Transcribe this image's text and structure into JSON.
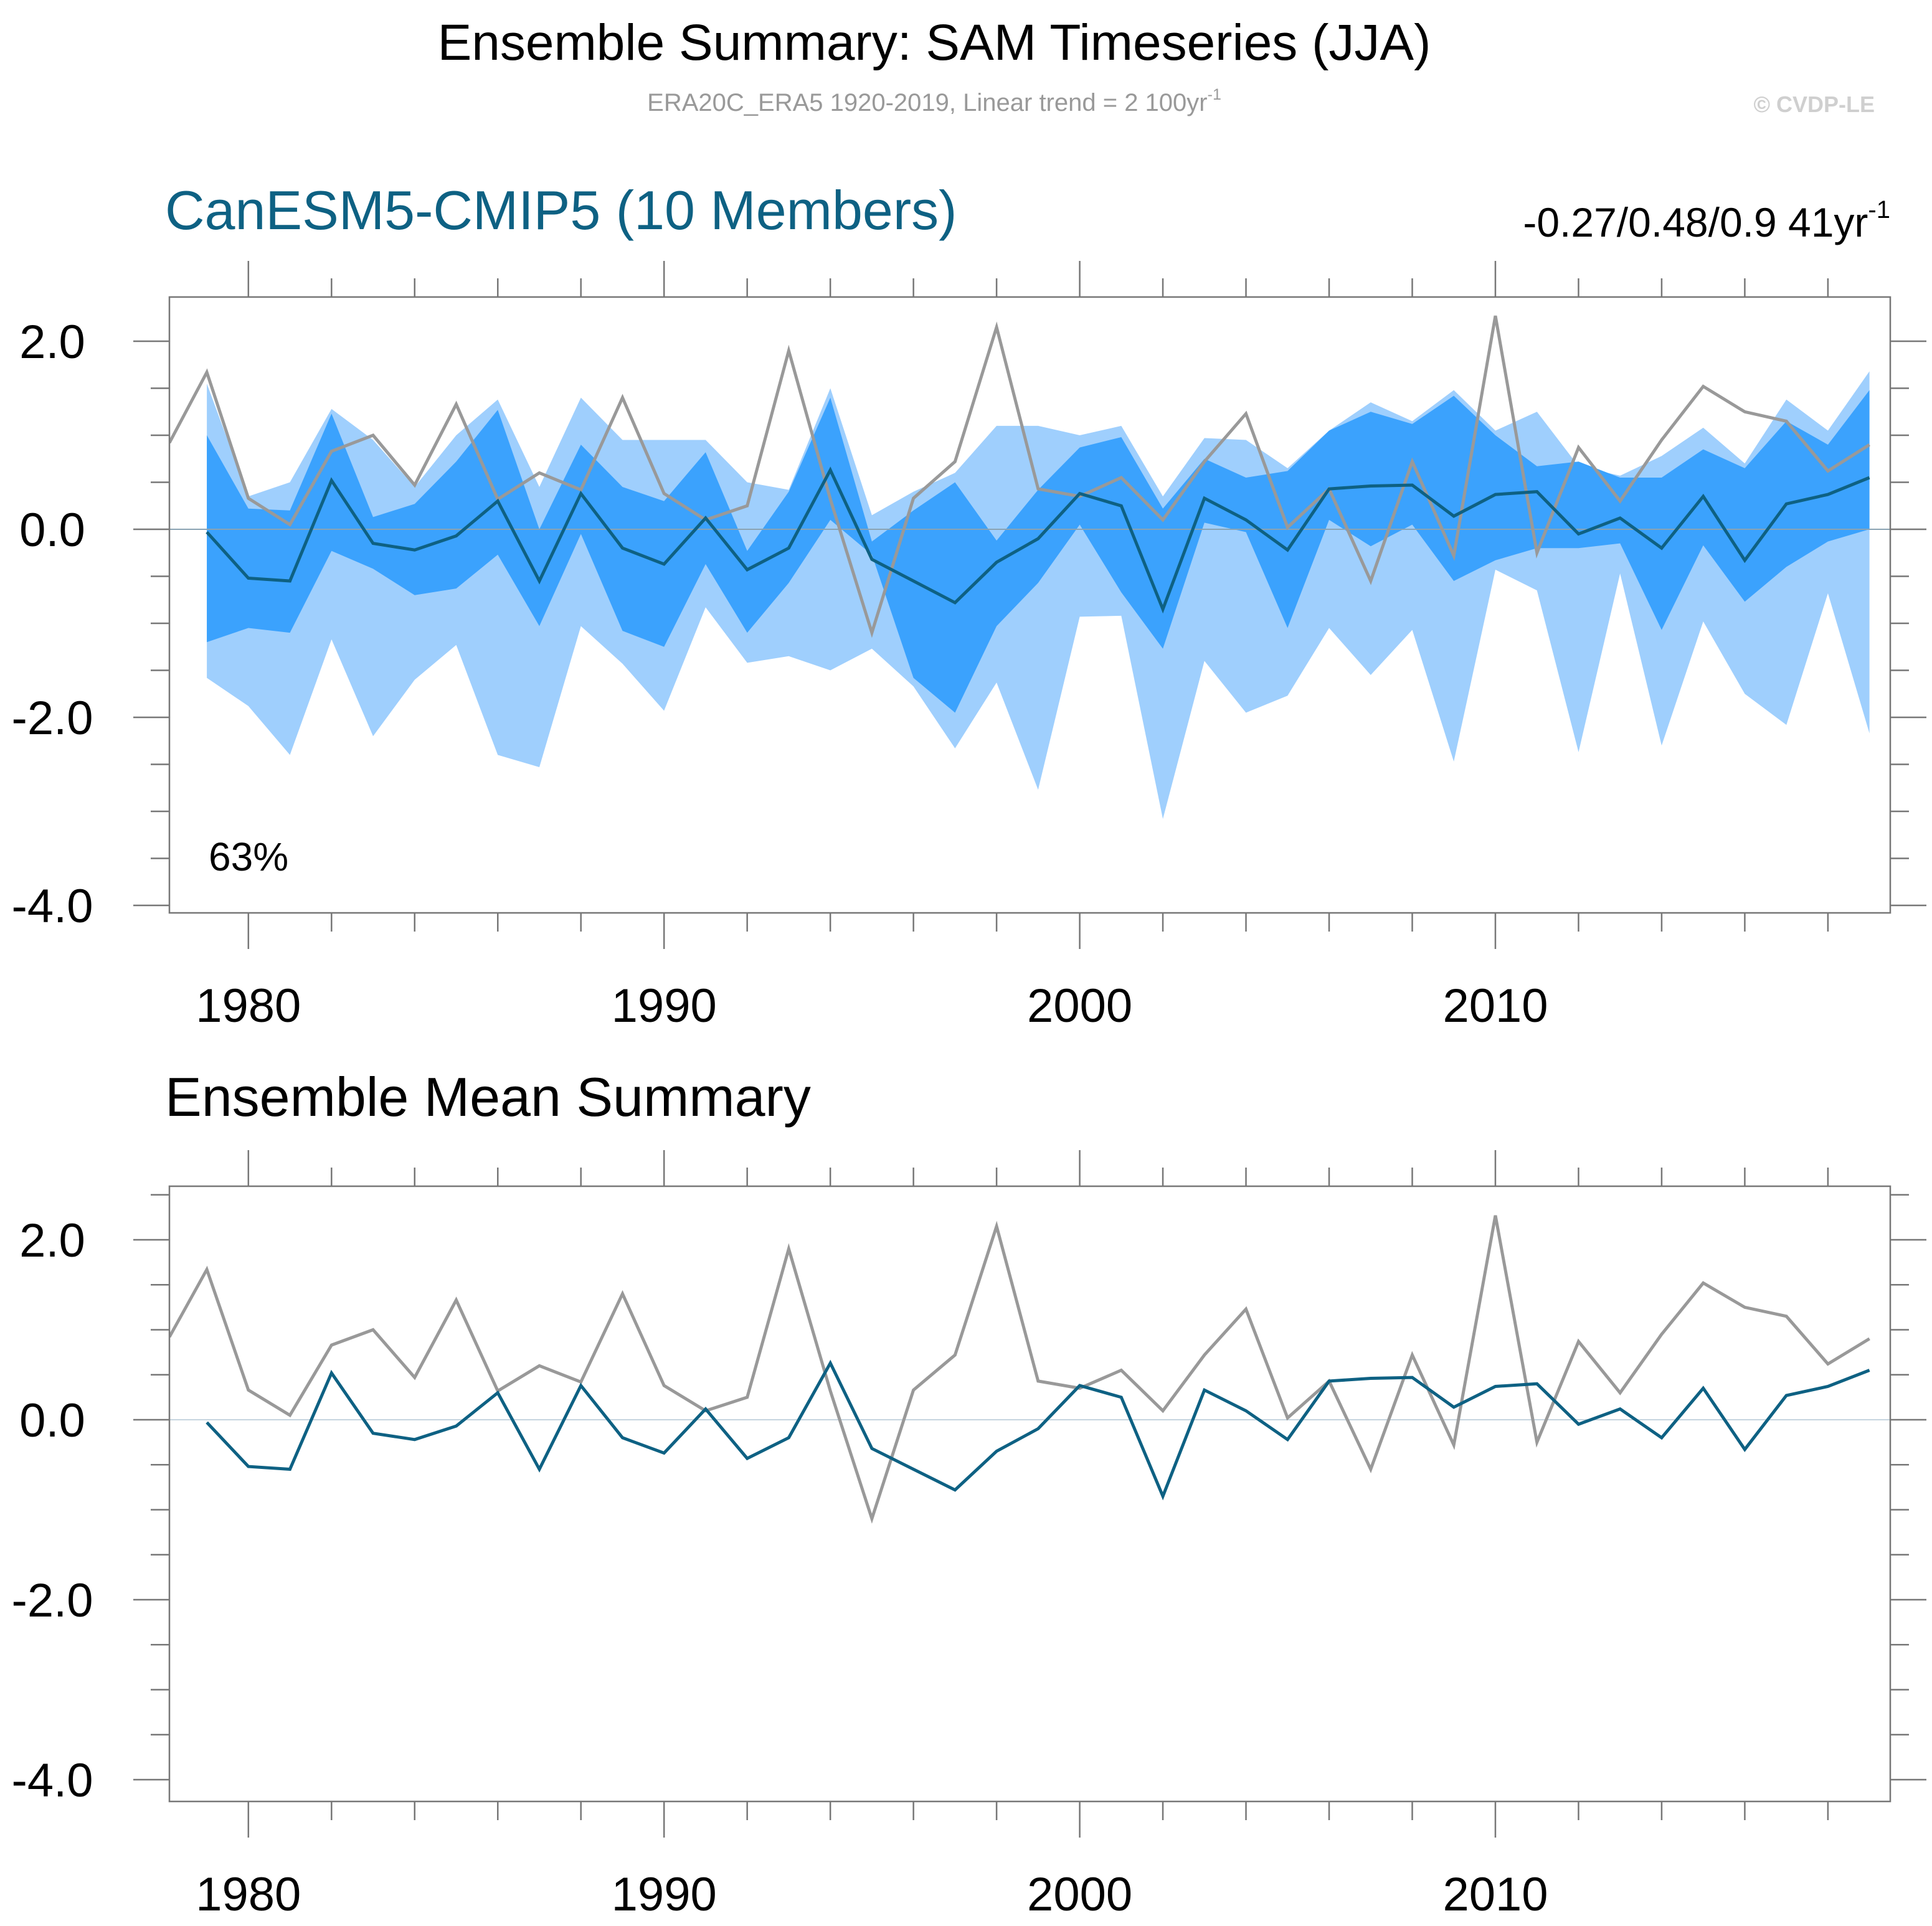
{
  "figure": {
    "title": "Ensemble Summary: SAM Timeseries (JJA)",
    "subtitle": "ERA20C_ERA5 1920-2019, Linear trend = 2 100yr",
    "subtitle_superscript": "-1",
    "copyright": "© CVDP-LE"
  },
  "colors": {
    "band_outer": "#9fcffd",
    "band_inner": "#3ba2fd",
    "ensemble_mean": "#0e6183",
    "observed": "#999999",
    "model_title": "#0e6183",
    "axis": "#777777",
    "subtitle": "#999999",
    "copyright": "#cfcfcf"
  },
  "chart_data": [
    {
      "type": "area",
      "panel_id": "ensemble",
      "title": "CanESM5-CMIP5 (10 Members)",
      "trend_label": "-0.27/0.48/0.9 41yr",
      "trend_superscript": "-1",
      "annotation": "63%",
      "xlim": [
        1978.1,
        2019.5
      ],
      "ylim": [
        -4.0,
        2.5
      ],
      "x_ticks": [
        1980,
        1990,
        2000,
        2010
      ],
      "y_ticks": [
        "-4.0",
        "-2.0",
        "0.0",
        "2.0"
      ],
      "x": [
        1979,
        1980,
        1981,
        1982,
        1983,
        1984,
        1985,
        1986,
        1987,
        1988,
        1989,
        1990,
        1991,
        1992,
        1993,
        1994,
        1995,
        1996,
        1997,
        1998,
        1999,
        2000,
        2001,
        2002,
        2003,
        2004,
        2005,
        2006,
        2007,
        2008,
        2009,
        2010,
        2011,
        2012,
        2013,
        2014,
        2015,
        2016,
        2017,
        2018,
        2019
      ],
      "series": [
        {
          "name": "outer_upper",
          "values": [
            1.55,
            0.35,
            0.5,
            1.28,
            0.95,
            0.45,
            1.0,
            1.38,
            0.45,
            1.4,
            0.95,
            0.95,
            0.95,
            0.5,
            0.42,
            1.5,
            0.15,
            0.4,
            0.6,
            1.1,
            1.1,
            1.0,
            1.1,
            0.35,
            0.97,
            0.95,
            0.65,
            1.05,
            1.35,
            1.15,
            1.48,
            1.05,
            1.25,
            0.67,
            0.57,
            0.78,
            1.08,
            0.7,
            1.38,
            1.05,
            1.68
          ]
        },
        {
          "name": "outer_lower",
          "values": [
            -1.58,
            -1.88,
            -2.4,
            -1.17,
            -2.2,
            -1.6,
            -1.23,
            -2.4,
            -2.53,
            -1.03,
            -1.43,
            -1.93,
            -0.83,
            -1.42,
            -1.35,
            -1.5,
            -1.27,
            -1.67,
            -2.33,
            -1.63,
            -2.77,
            -0.93,
            -0.92,
            -3.08,
            -1.4,
            -1.95,
            -1.77,
            -1.05,
            -1.55,
            -1.07,
            -2.47,
            -0.43,
            -0.65,
            -2.37,
            -0.47,
            -2.3,
            -0.98,
            -1.75,
            -2.08,
            -0.68,
            -2.17
          ]
        },
        {
          "name": "inner_upper",
          "values": [
            1.0,
            0.22,
            0.2,
            1.23,
            0.13,
            0.27,
            0.72,
            1.27,
            0.0,
            0.9,
            0.45,
            0.3,
            0.82,
            -0.23,
            0.4,
            1.4,
            -0.13,
            0.2,
            0.5,
            -0.12,
            0.42,
            0.87,
            0.98,
            0.22,
            0.75,
            0.55,
            0.62,
            1.05,
            1.25,
            1.12,
            1.42,
            1.0,
            0.67,
            0.72,
            0.55,
            0.55,
            0.85,
            0.65,
            1.15,
            0.9,
            1.48
          ]
        },
        {
          "name": "inner_lower",
          "values": [
            -1.2,
            -1.05,
            -1.1,
            -0.23,
            -0.42,
            -0.7,
            -0.63,
            -0.27,
            -1.03,
            -0.05,
            -1.08,
            -1.25,
            -0.37,
            -1.1,
            -0.57,
            0.1,
            -0.27,
            -1.58,
            -1.95,
            -1.03,
            -0.57,
            0.05,
            -0.67,
            -1.27,
            0.07,
            -0.03,
            -1.05,
            0.1,
            -0.18,
            0.05,
            -0.55,
            -0.33,
            -0.2,
            -0.2,
            -0.15,
            -1.07,
            -0.17,
            -0.77,
            -0.4,
            -0.13,
            0.0
          ]
        },
        {
          "name": "ensemble_mean",
          "values": [
            -0.03,
            -0.52,
            -0.55,
            0.52,
            -0.15,
            -0.22,
            -0.07,
            0.3,
            -0.55,
            0.38,
            -0.2,
            -0.37,
            0.12,
            -0.43,
            -0.2,
            0.63,
            -0.32,
            -0.55,
            -0.78,
            -0.35,
            -0.1,
            0.38,
            0.25,
            -0.85,
            0.33,
            0.1,
            -0.22,
            0.43,
            0.46,
            0.47,
            0.14,
            0.37,
            0.4,
            -0.05,
            0.12,
            -0.2,
            0.35,
            -0.33,
            0.27,
            0.37,
            0.55
          ]
        },
        {
          "name": "observed",
          "values": [
            1.67,
            0.33,
            0.05,
            0.83,
            1.0,
            0.47,
            1.33,
            0.32,
            0.6,
            0.42,
            1.4,
            0.38,
            0.1,
            0.25,
            1.9,
            0.32,
            -1.1,
            0.33,
            0.72,
            2.15,
            0.43,
            0.35,
            0.55,
            0.1,
            0.72,
            1.23,
            0.02,
            0.43,
            -0.55,
            0.72,
            -0.28,
            2.27,
            -0.25,
            0.87,
            0.3,
            0.95,
            1.52,
            1.25,
            1.15,
            0.62,
            0.9
          ]
        }
      ],
      "observed_start": {
        "x": 1978.1,
        "y": 0.92
      }
    },
    {
      "type": "line",
      "panel_id": "mean",
      "title": "Ensemble Mean Summary",
      "xlim": [
        1978.1,
        2019.5
      ],
      "ylim": [
        -4.0,
        2.5
      ],
      "x_ticks": [
        1980,
        1990,
        2000,
        2010
      ],
      "y_ticks": [
        "-4.0",
        "-2.0",
        "0.0",
        "2.0"
      ],
      "x": [
        1979,
        1980,
        1981,
        1982,
        1983,
        1984,
        1985,
        1986,
        1987,
        1988,
        1989,
        1990,
        1991,
        1992,
        1993,
        1994,
        1995,
        1996,
        1997,
        1998,
        1999,
        2000,
        2001,
        2002,
        2003,
        2004,
        2005,
        2006,
        2007,
        2008,
        2009,
        2010,
        2011,
        2012,
        2013,
        2014,
        2015,
        2016,
        2017,
        2018,
        2019
      ],
      "series": [
        {
          "name": "ensemble_mean",
          "values": [
            -0.03,
            -0.52,
            -0.55,
            0.52,
            -0.15,
            -0.22,
            -0.07,
            0.3,
            -0.55,
            0.38,
            -0.2,
            -0.37,
            0.12,
            -0.43,
            -0.2,
            0.63,
            -0.32,
            -0.55,
            -0.78,
            -0.35,
            -0.1,
            0.38,
            0.25,
            -0.85,
            0.33,
            0.1,
            -0.22,
            0.43,
            0.46,
            0.47,
            0.14,
            0.37,
            0.4,
            -0.05,
            0.12,
            -0.2,
            0.35,
            -0.33,
            0.27,
            0.37,
            0.55
          ]
        },
        {
          "name": "observed",
          "values": [
            1.67,
            0.33,
            0.05,
            0.83,
            1.0,
            0.47,
            1.33,
            0.32,
            0.6,
            0.42,
            1.4,
            0.38,
            0.1,
            0.25,
            1.9,
            0.32,
            -1.1,
            0.33,
            0.72,
            2.15,
            0.43,
            0.35,
            0.55,
            0.1,
            0.72,
            1.23,
            0.02,
            0.43,
            -0.55,
            0.72,
            -0.28,
            2.27,
            -0.25,
            0.87,
            0.3,
            0.95,
            1.52,
            1.25,
            1.15,
            0.62,
            0.9
          ]
        }
      ],
      "observed_start": {
        "x": 1978.1,
        "y": 0.92
      }
    }
  ]
}
